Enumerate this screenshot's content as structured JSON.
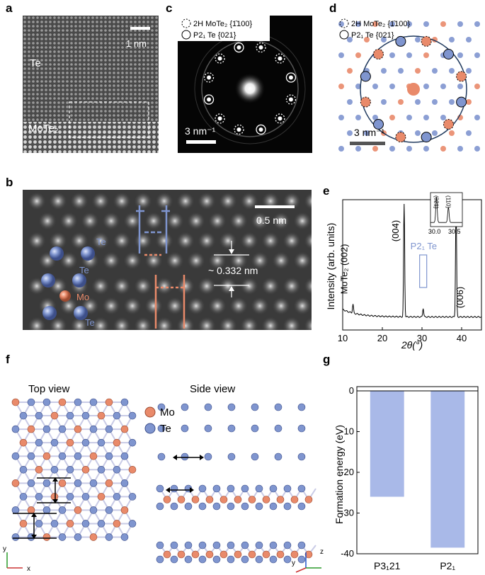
{
  "panels": {
    "a": {
      "letter": "a",
      "scalebar": "1 nm",
      "label_top": "Te",
      "label_bottom": "MoTe₂"
    },
    "b": {
      "letter": "b",
      "scalebar": "0.5 nm",
      "distance": "~ 0.332 nm",
      "atoms": {
        "te1": "Te",
        "te2": "Te",
        "mo": "Mo",
        "te3": "Te"
      }
    },
    "c": {
      "letter": "c",
      "legend_dashed": "2H MoTe₂ {1̄100}",
      "legend_solid": "P2₁ Te {021}",
      "scalebar": "3 nm⁻¹"
    },
    "d": {
      "letter": "d",
      "legend_dashed": "2H MoTe₂ {1̄100}",
      "legend_solid": "P2₁ Te {021}",
      "scalebar": "3 nm⁻¹"
    },
    "e": {
      "letter": "e"
    },
    "f": {
      "letter": "f",
      "top_view": "Top view",
      "side_view": "Side view",
      "legend_mo": "Mo",
      "legend_te": "Te",
      "axes_top": {
        "y": "y",
        "x": "x"
      },
      "axes_side": {
        "z": "z",
        "y": "y"
      }
    },
    "g": {
      "letter": "g"
    }
  },
  "colors": {
    "te_blue": "#7f95cf",
    "mo_orange": "#e98a6a",
    "bar_fill": "#a9b9e8",
    "panel_e_line": "#000000"
  },
  "chart_data": [
    {
      "id": "e",
      "type": "line",
      "xlabel": "2θ(°)",
      "ylabel": "Intensity (arb. units)",
      "xlim": [
        10,
        45
      ],
      "xticks": [
        10,
        20,
        30,
        40
      ],
      "peaks": [
        {
          "x": 12.6,
          "label": "MoTe₂ (002)"
        },
        {
          "x": 25.5,
          "label": "(004)"
        },
        {
          "x": 30.3,
          "label": "P2₁ Te"
        },
        {
          "x": 38.6,
          "label": "(006)"
        }
      ],
      "inset": {
        "xticks": [
          "30.0",
          "30.5"
        ],
        "peaks": [
          {
            "x": 30.05,
            "label": "(021)"
          },
          {
            "x": 30.35,
            "label": "(110)"
          }
        ]
      }
    },
    {
      "id": "g",
      "type": "bar",
      "categories": [
        "P3₁21",
        "P2₁"
      ],
      "values": [
        -26,
        -38.5
      ],
      "ylabel": "Formation energy (eV)",
      "ylim": [
        -40,
        0
      ],
      "yticks": [
        "0",
        "-10",
        "-20",
        "-30",
        "-40"
      ]
    }
  ]
}
